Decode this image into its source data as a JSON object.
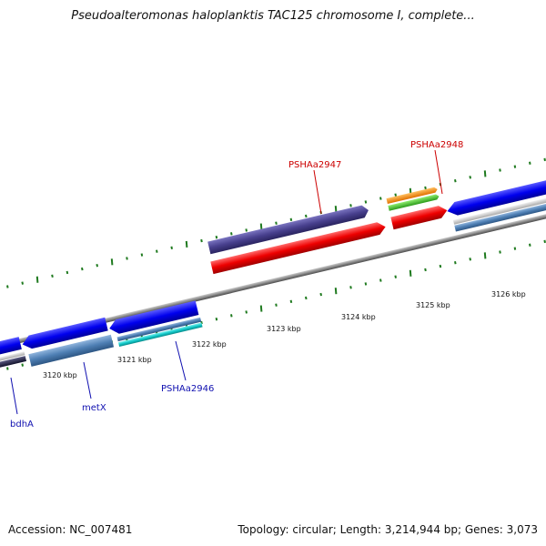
{
  "title": "Pseudoalteromonas haloplanktis TAC125 chromosome I, complete...",
  "footer": {
    "accession": "Accession: NC_007481",
    "summary": "Topology: circular; Length: 3,214,944 bp; Genes: 3,073"
  },
  "colors": {
    "backbone": "#8a8a8a",
    "tick": "#1f7a1f",
    "gene_label_blue": "#1010b0",
    "gene_label_red": "#cc0000"
  },
  "kbp_ticks": [
    {
      "label": "3120 kbp",
      "kbp": 3120
    },
    {
      "label": "3121 kbp",
      "kbp": 3121
    },
    {
      "label": "3122 kbp",
      "kbp": 3122
    },
    {
      "label": "3123 kbp",
      "kbp": 3123
    },
    {
      "label": "3124 kbp",
      "kbp": 3124
    },
    {
      "label": "3125 kbp",
      "kbp": 3125
    },
    {
      "label": "3126 kbp",
      "kbp": 3126
    }
  ],
  "gene_labels": [
    {
      "name": "bdhA",
      "color": "#1010b0"
    },
    {
      "name": "metX",
      "color": "#1010b0"
    },
    {
      "name": "PSHAa2946",
      "color": "#1010b0"
    },
    {
      "name": "PSHAa2947",
      "color": "#cc0000"
    },
    {
      "name": "PSHAa2948",
      "color": "#cc0000"
    }
  ]
}
